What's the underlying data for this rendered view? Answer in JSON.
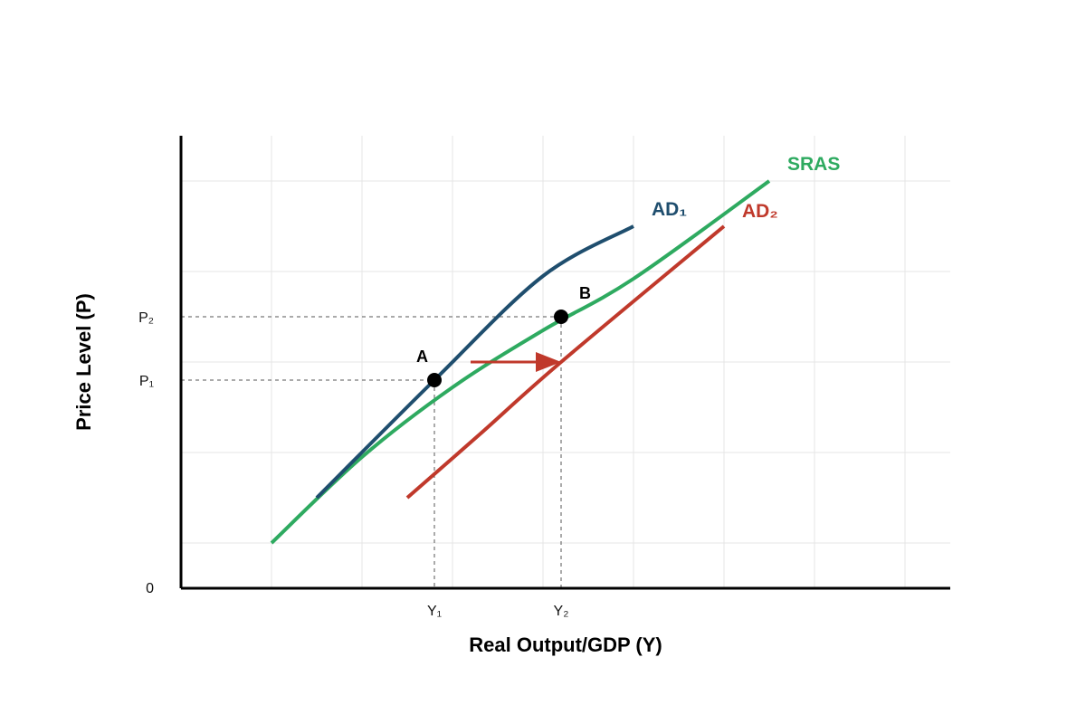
{
  "chart_data": {
    "type": "line",
    "xlabel": "Real Output/GDP (Y)",
    "ylabel": "Price Level (P)",
    "origin_label": "0",
    "xlim": [
      0,
      8.5
    ],
    "ylim": [
      0,
      5
    ],
    "grid": true,
    "series": [
      {
        "name": "SRAS",
        "color": "#2eaa60",
        "points": [
          [
            1,
            0.5
          ],
          [
            2,
            1.45
          ],
          [
            3,
            2.22
          ],
          [
            4,
            2.85
          ],
          [
            5,
            3.42
          ],
          [
            6.5,
            4.5
          ]
        ]
      },
      {
        "name": "AD₁",
        "color": "#1f4e6e",
        "points": [
          [
            1.5,
            1
          ],
          [
            2.8,
            2.3
          ],
          [
            4,
            3.45
          ],
          [
            5,
            4
          ]
        ]
      },
      {
        "name": "AD₂",
        "color": "#c0392b",
        "points": [
          [
            2.5,
            1
          ],
          [
            3.3,
            1.7
          ],
          [
            4.2,
            2.5
          ],
          [
            6,
            4
          ]
        ]
      }
    ],
    "points": [
      {
        "label": "A",
        "x": 2.8,
        "y": 2.3,
        "x_label": "Y₁",
        "y_label": "P₁"
      },
      {
        "label": "B",
        "x": 4.2,
        "y": 3.0,
        "x_label": "Y₂",
        "y_label": "P₂"
      }
    ],
    "shift_arrow": {
      "from": [
        3.2,
        2.5
      ],
      "to": [
        4.2,
        2.5
      ],
      "color": "#c0392b"
    }
  }
}
